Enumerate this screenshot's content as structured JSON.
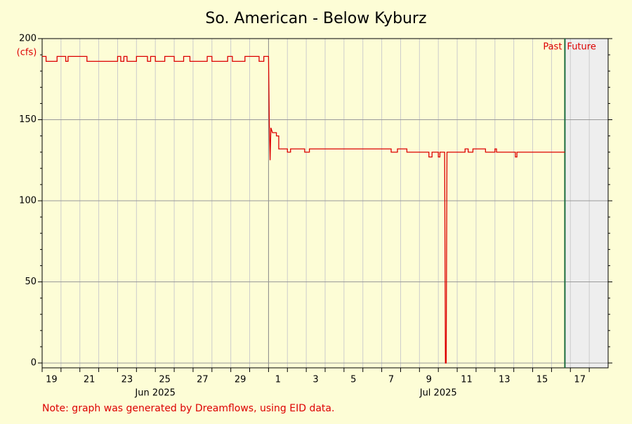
{
  "chart_data": {
    "type": "line",
    "title": "So. American - Below Kyburz",
    "y_unit": "(cfs)",
    "note": "Note: graph was generated by Dreamflows, using EID data.",
    "past_label": "Past",
    "future_label": "Future",
    "now": "2025-07-16T17:00",
    "xlim": [
      "2025-06-19",
      "2025-07-19"
    ],
    "xticks": [
      {
        "value": "2025-06-19",
        "label": "19"
      },
      {
        "value": "2025-06-21",
        "label": "21"
      },
      {
        "value": "2025-06-23",
        "label": "23"
      },
      {
        "value": "2025-06-25",
        "label": "25"
      },
      {
        "value": "2025-06-27",
        "label": "27"
      },
      {
        "value": "2025-06-29",
        "label": "29"
      },
      {
        "value": "2025-07-01",
        "label": "1"
      },
      {
        "value": "2025-07-03",
        "label": "3"
      },
      {
        "value": "2025-07-05",
        "label": "5"
      },
      {
        "value": "2025-07-07",
        "label": "7"
      },
      {
        "value": "2025-07-09",
        "label": "9"
      },
      {
        "value": "2025-07-11",
        "label": "11"
      },
      {
        "value": "2025-07-13",
        "label": "13"
      },
      {
        "value": "2025-07-15",
        "label": "15"
      },
      {
        "value": "2025-07-17",
        "label": "17"
      }
    ],
    "x_minor_ticks": [
      "2025-06-20",
      "2025-06-22",
      "2025-06-24",
      "2025-06-26",
      "2025-06-28",
      "2025-06-30",
      "2025-07-02",
      "2025-07-04",
      "2025-07-06",
      "2025-07-08",
      "2025-07-10",
      "2025-07-12",
      "2025-07-14",
      "2025-07-16",
      "2025-07-18"
    ],
    "month_labels": [
      {
        "value": "2025-06-25",
        "label": "Jun 2025"
      },
      {
        "value": "2025-07-10",
        "label": "Jul 2025"
      }
    ],
    "ylim": [
      -3,
      200
    ],
    "yticks": [
      0,
      50,
      100,
      150,
      200
    ],
    "y_minor_ticks": [
      10,
      20,
      30,
      40,
      60,
      70,
      80,
      90,
      110,
      120,
      130,
      140,
      160,
      170,
      180,
      190
    ],
    "grid": true,
    "x": [
      "2025-06-19T00:00",
      "2025-06-19T05:00",
      "2025-06-19T05:00",
      "2025-06-19T19:00",
      "2025-06-19T19:00",
      "2025-06-20T06:00",
      "2025-06-20T06:00",
      "2025-06-20T09:00",
      "2025-06-20T09:00",
      "2025-06-21T09:00",
      "2025-06-21T09:00",
      "2025-06-23T00:00",
      "2025-06-23T00:00",
      "2025-06-23T04:00",
      "2025-06-23T04:00",
      "2025-06-23T08:00",
      "2025-06-23T08:00",
      "2025-06-23T12:00",
      "2025-06-23T12:00",
      "2025-06-24T00:00",
      "2025-06-24T00:00",
      "2025-06-24T14:00",
      "2025-06-24T14:00",
      "2025-06-24T18:00",
      "2025-06-24T18:00",
      "2025-06-25T00:00",
      "2025-06-25T00:00",
      "2025-06-25T12:00",
      "2025-06-25T12:00",
      "2025-06-26T00:00",
      "2025-06-26T00:00",
      "2025-06-26T12:00",
      "2025-06-26T12:00",
      "2025-06-26T20:00",
      "2025-06-26T20:00",
      "2025-06-27T18:00",
      "2025-06-27T18:00",
      "2025-06-28T00:00",
      "2025-06-28T00:00",
      "2025-06-28T20:00",
      "2025-06-28T20:00",
      "2025-06-29T02:00",
      "2025-06-29T02:00",
      "2025-06-29T18:00",
      "2025-06-29T18:00",
      "2025-06-30T12:00",
      "2025-06-30T12:00",
      "2025-06-30T18:00",
      "2025-06-30T18:00",
      "2025-07-01T00:00",
      "2025-07-01T01:00",
      "2025-07-01T02:00",
      "2025-07-01T03:00",
      "2025-07-01T05:00",
      "2025-07-01T10:00",
      "2025-07-01T10:00",
      "2025-07-01T13:00",
      "2025-07-01T13:00",
      "2025-07-02T00:00",
      "2025-07-02T00:00",
      "2025-07-02T04:00",
      "2025-07-02T04:00",
      "2025-07-02T22:00",
      "2025-07-02T22:00",
      "2025-07-03T04:00",
      "2025-07-03T04:00",
      "2025-07-07T12:00",
      "2025-07-07T12:00",
      "2025-07-07T20:00",
      "2025-07-07T20:00",
      "2025-07-08T08:00",
      "2025-07-08T08:00",
      "2025-07-09T12:00",
      "2025-07-09T12:00",
      "2025-07-09T16:00",
      "2025-07-09T16:00",
      "2025-07-10T00:00",
      "2025-07-10T00:00",
      "2025-07-10T02:00",
      "2025-07-10T02:00",
      "2025-07-10T08:00",
      "2025-07-10T09:00",
      "2025-07-10T10:00",
      "2025-07-10T11:00",
      "2025-07-11T10:00",
      "2025-07-11T10:00",
      "2025-07-11T14:00",
      "2025-07-11T14:00",
      "2025-07-11T20:00",
      "2025-07-11T20:00",
      "2025-07-12T12:00",
      "2025-07-12T12:00",
      "2025-07-13T00:00",
      "2025-07-13T00:00",
      "2025-07-13T02:00",
      "2025-07-13T02:00",
      "2025-07-14T02:00",
      "2025-07-14T02:00",
      "2025-07-14T04:00",
      "2025-07-14T04:00",
      "2025-07-16T17:00"
    ],
    "series": [
      {
        "name": "So. American - Below Kyburz",
        "color": "#dd0000",
        "values": [
          189,
          189,
          186,
          186,
          189,
          189,
          186,
          186,
          189,
          189,
          186,
          186,
          189,
          189,
          186,
          186,
          189,
          189,
          186,
          186,
          189,
          189,
          186,
          186,
          189,
          189,
          186,
          186,
          189,
          189,
          186,
          186,
          189,
          189,
          186,
          186,
          189,
          189,
          186,
          186,
          189,
          189,
          186,
          186,
          189,
          189,
          186,
          186,
          189,
          189,
          147,
          125,
          145,
          142,
          142,
          140,
          140,
          132,
          132,
          130,
          130,
          132,
          132,
          130,
          130,
          132,
          132,
          130,
          130,
          132,
          132,
          130,
          130,
          127,
          127,
          130,
          130,
          127,
          127,
          130,
          130,
          0,
          0,
          130,
          130,
          132,
          132,
          130,
          130,
          132,
          132,
          130,
          130,
          132,
          132,
          130,
          130,
          127,
          127,
          130,
          130
        ]
      }
    ]
  }
}
